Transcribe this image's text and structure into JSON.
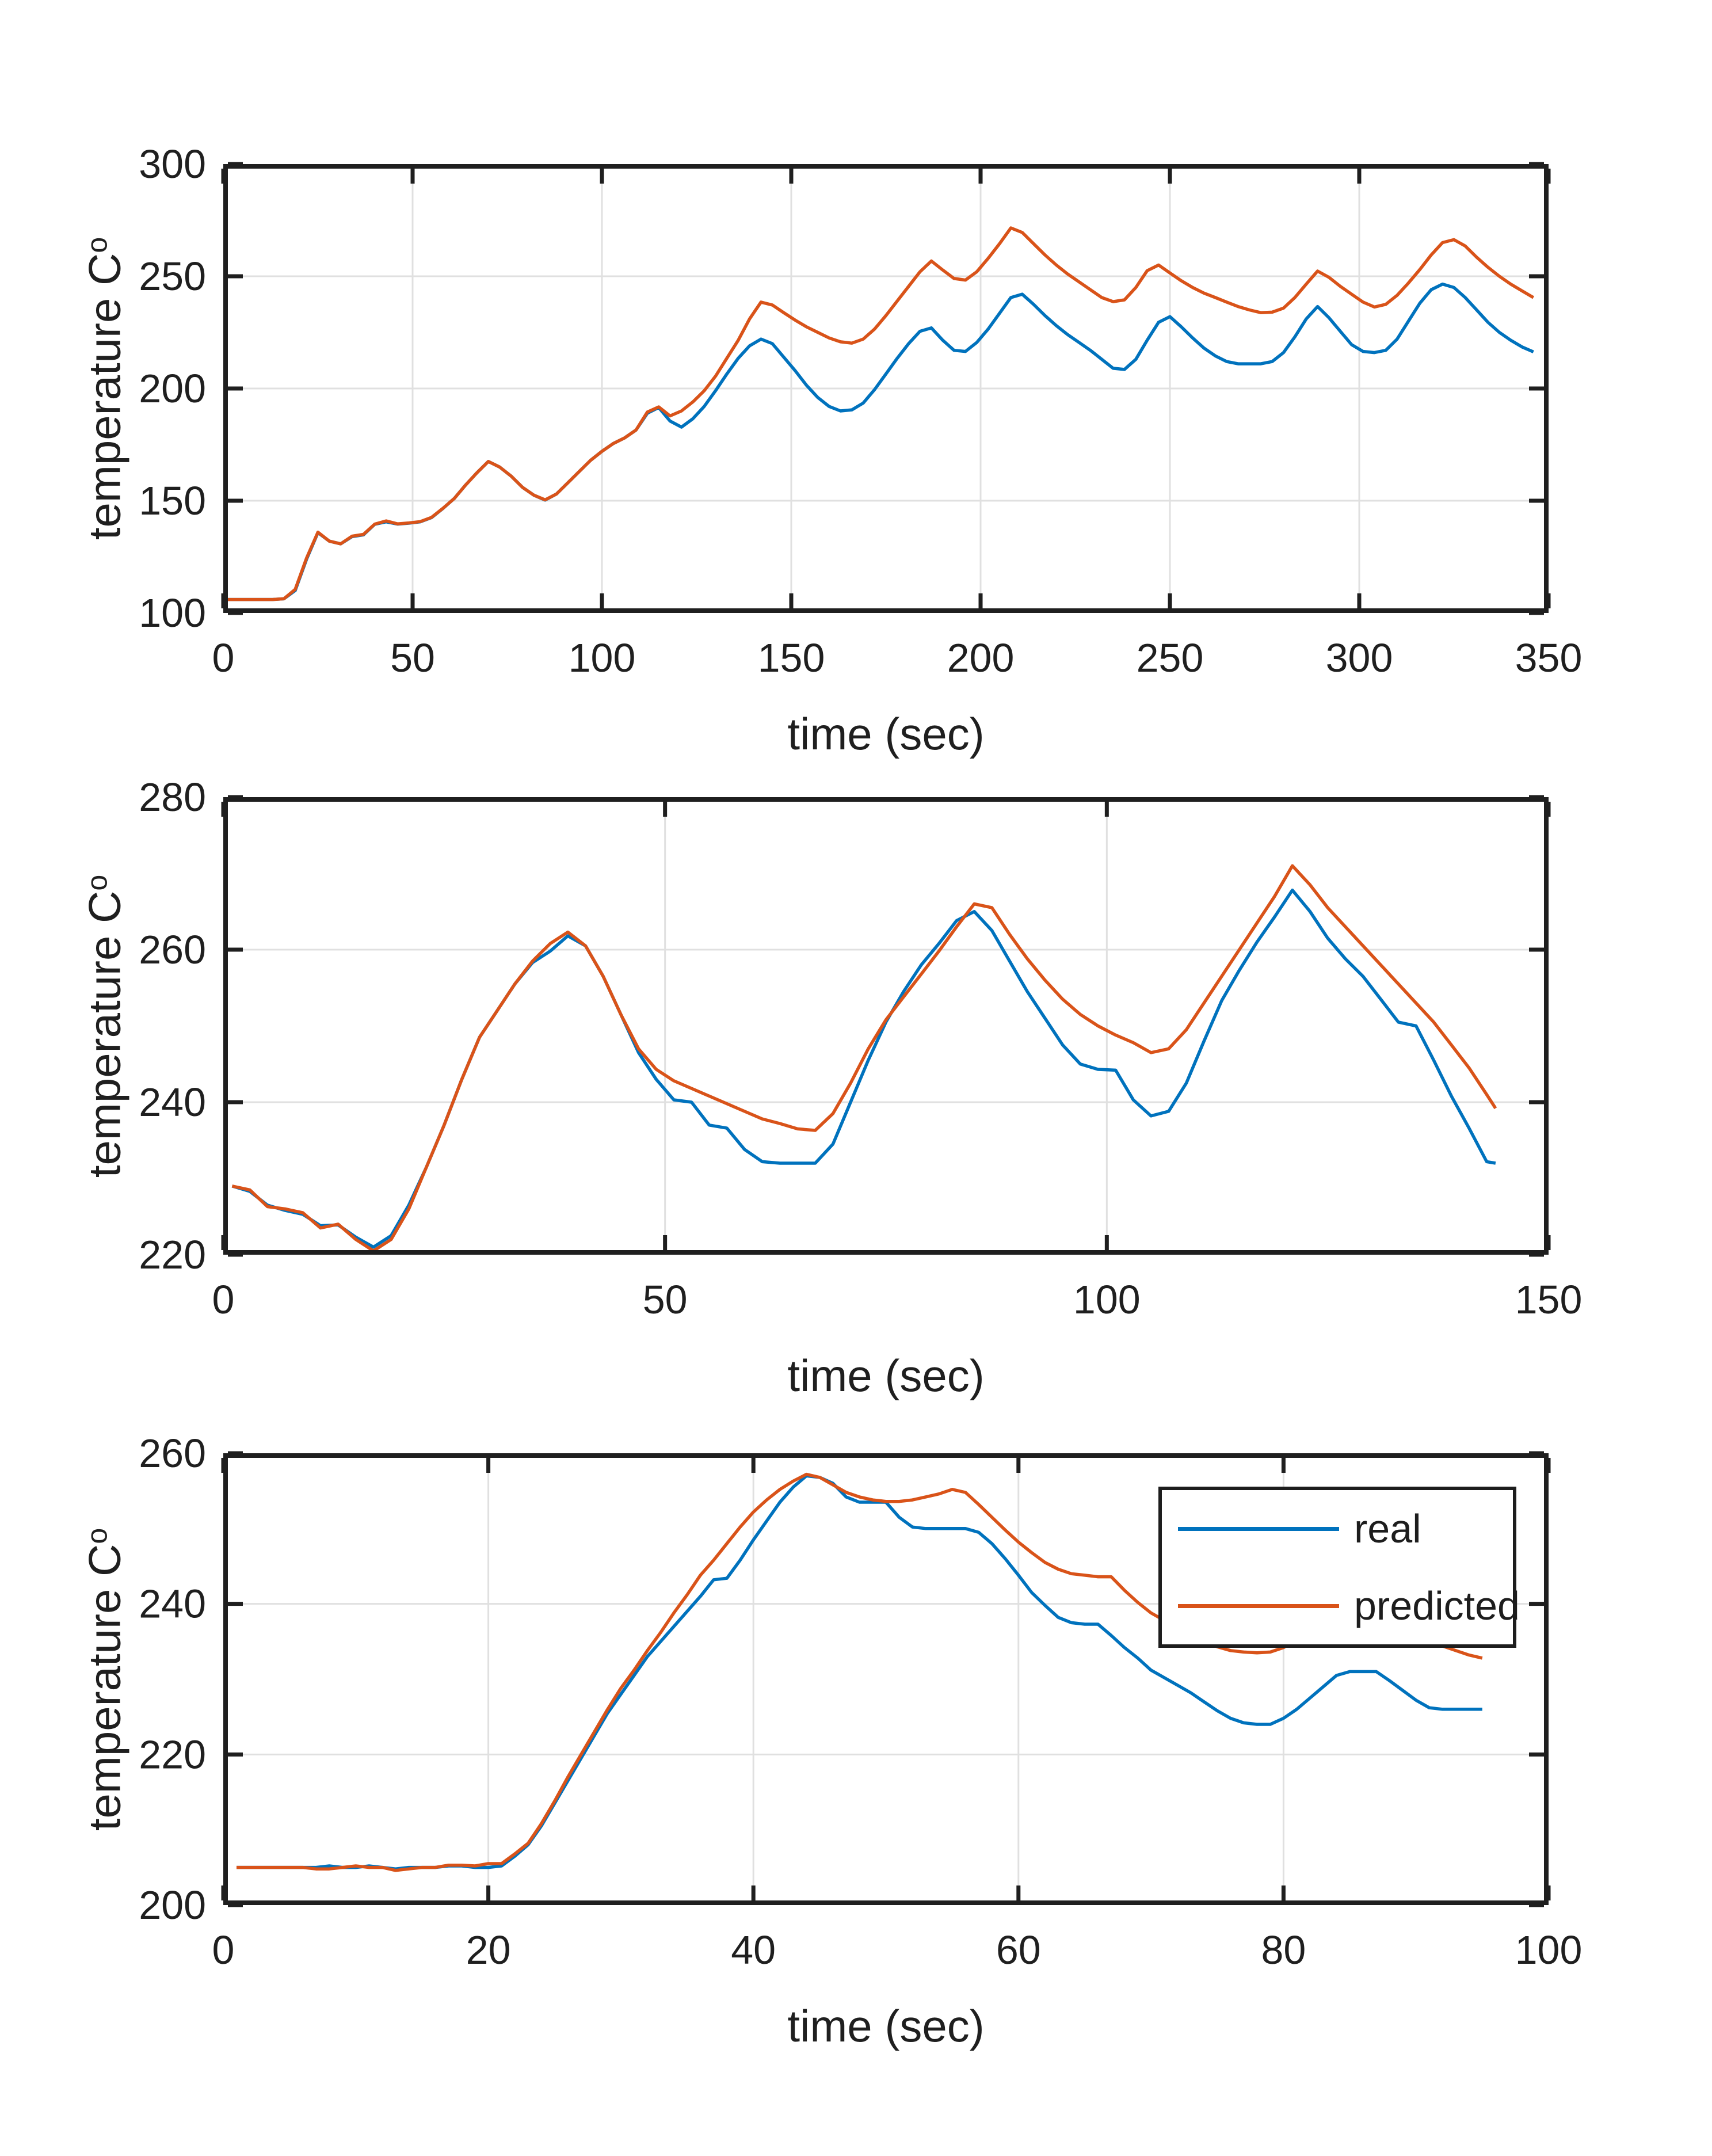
{
  "figure": {
    "background": "#ffffff",
    "axis_color": "#1f1f1f",
    "grid_color": "#e0e0e0",
    "tick_label_color": "#1f1f1f"
  },
  "series_colors": {
    "real": "#0072BD",
    "predicted": "#D95319"
  },
  "legend": {
    "location": "northeast",
    "entries": [
      {
        "label": "real",
        "series": "real"
      },
      {
        "label": "predicted",
        "series": "predicted"
      }
    ]
  },
  "chart_data": [
    {
      "type": "line",
      "xlabel": "time (sec)",
      "ylabel": "temperature C",
      "ylabel_sup": "o",
      "xlim": [
        0,
        350
      ],
      "ylim": [
        100,
        300
      ],
      "xticks": [
        0,
        50,
        100,
        150,
        200,
        250,
        300,
        350
      ],
      "yticks": [
        100,
        150,
        200,
        250,
        300
      ],
      "grid": true,
      "x": [
        1,
        4,
        7,
        10,
        13,
        16,
        19,
        22,
        25,
        28,
        31,
        34,
        37,
        40,
        43,
        46,
        49,
        52,
        55,
        58,
        61,
        64,
        67,
        70,
        73,
        76,
        79,
        82,
        85,
        88,
        91,
        94,
        97,
        100,
        103,
        106,
        109,
        112,
        115,
        118,
        121,
        124,
        127,
        130,
        133,
        136,
        139,
        142,
        145,
        148,
        151,
        154,
        157,
        160,
        163,
        166,
        169,
        172,
        175,
        178,
        181,
        184,
        187,
        190,
        193,
        196,
        199,
        202,
        205,
        208,
        211,
        214,
        217,
        220,
        223,
        226,
        229,
        232,
        235,
        238,
        241,
        244,
        247,
        250,
        253,
        256,
        259,
        262,
        265,
        268,
        271,
        274,
        277,
        280,
        283,
        286,
        289,
        292,
        295,
        298,
        301,
        304,
        307,
        310,
        313,
        316,
        319,
        322,
        325,
        328,
        331,
        334,
        337,
        340,
        343,
        346
      ],
      "series": [
        {
          "name": "real",
          "values": [
            106,
            106,
            106,
            106,
            106,
            106.3,
            110,
            124,
            135.8,
            132,
            130.8,
            134,
            134.8,
            139.5,
            140.6,
            139.6,
            140,
            140.6,
            142.5,
            146.5,
            151,
            157,
            162.5,
            167.5,
            165,
            161,
            156,
            152.5,
            150.3,
            153,
            158,
            163,
            168,
            172,
            175.5,
            178,
            181.5,
            189,
            191.5,
            185.5,
            182.8,
            186.5,
            192,
            199,
            206.5,
            213.5,
            219,
            222,
            220,
            214,
            208,
            201.5,
            196,
            192,
            190,
            190.5,
            193.5,
            199.5,
            206.5,
            213.5,
            220,
            225.5,
            227,
            221.5,
            217,
            216.5,
            220.5,
            226.5,
            233.5,
            240.5,
            242,
            237.5,
            232.5,
            228,
            224,
            220.5,
            217,
            213,
            209,
            208.5,
            213,
            221.5,
            229.5,
            232,
            227.5,
            222.5,
            218,
            214.5,
            212,
            211,
            211,
            211,
            212,
            216,
            223,
            231,
            236.5,
            231.5,
            225.5,
            219.5,
            216.5,
            216,
            217,
            222,
            230,
            238,
            244,
            246.5,
            245,
            240.5,
            235,
            229.5,
            225,
            221.5,
            218.5,
            216.3
          ]
        },
        {
          "name": "predicted",
          "values": [
            106,
            106,
            106,
            106,
            106,
            106.3,
            110.5,
            124.5,
            136,
            132,
            130.8,
            134.2,
            135,
            139.6,
            141,
            139.7,
            140.1,
            140.7,
            142.6,
            146.6,
            151,
            157,
            162.5,
            167.5,
            165,
            161,
            156,
            152.5,
            150.4,
            153,
            158,
            163,
            168,
            172,
            175.5,
            178,
            181.5,
            189.5,
            191.8,
            187.8,
            190,
            194,
            199,
            205.5,
            213.5,
            221.5,
            231,
            238.5,
            237.2,
            233.8,
            230.5,
            227.5,
            225,
            222.5,
            220.8,
            220.2,
            222,
            226.5,
            232.5,
            239,
            245.5,
            252,
            256.8,
            252.8,
            249,
            248.3,
            252,
            258,
            264.5,
            271.5,
            269.5,
            264.5,
            259.5,
            255,
            251,
            247.5,
            244,
            240.5,
            238.7,
            239.5,
            245,
            252.5,
            255,
            251.5,
            248,
            245,
            242.5,
            240.5,
            238.5,
            236.5,
            235,
            233.8,
            234,
            235.8,
            240.5,
            246.5,
            252.3,
            249.5,
            245.5,
            242,
            238.5,
            236.3,
            237.5,
            241.5,
            247,
            253,
            259.5,
            265,
            266.3,
            263.5,
            258.5,
            254,
            250,
            246.5,
            243.5,
            240.5
          ]
        }
      ]
    },
    {
      "type": "line",
      "xlabel": "time (sec)",
      "ylabel": "temperature C",
      "ylabel_sup": "o",
      "xlim": [
        0,
        150
      ],
      "ylim": [
        220,
        280
      ],
      "xticks": [
        0,
        50,
        100,
        150
      ],
      "yticks": [
        220,
        240,
        260,
        280
      ],
      "grid": true,
      "x": [
        1,
        3,
        5,
        7,
        9,
        11,
        13,
        15,
        17,
        19,
        21,
        23,
        25,
        27,
        29,
        31,
        33,
        35,
        37,
        39,
        41,
        43,
        45,
        47,
        49,
        51,
        53,
        55,
        57,
        59,
        61,
        63,
        65,
        67,
        69,
        71,
        73,
        75,
        77,
        79,
        81,
        83,
        85,
        87,
        89,
        91,
        93,
        95,
        97,
        99,
        101,
        103,
        105,
        107,
        109,
        111,
        113,
        115,
        117,
        119,
        121,
        123,
        125,
        127,
        129,
        131,
        133,
        135,
        137,
        139,
        141,
        143,
        144
      ],
      "series": [
        {
          "name": "real",
          "values": [
            229,
            228.3,
            226.5,
            225.8,
            225.3,
            223.8,
            223.9,
            222.3,
            221,
            222.5,
            226.5,
            231.5,
            237,
            243,
            248.5,
            252,
            255.5,
            258.3,
            259.8,
            261.8,
            260.5,
            256.5,
            251.5,
            246.5,
            243,
            240.3,
            240,
            237,
            236.6,
            233.8,
            232.2,
            232,
            232,
            232,
            234.5,
            240,
            245.5,
            250.5,
            254.5,
            258,
            260.8,
            263.8,
            265,
            262.5,
            258.5,
            254.5,
            251,
            247.5,
            245,
            244.3,
            244.2,
            240.3,
            238.2,
            238.8,
            242.5,
            248,
            253.3,
            257.3,
            261,
            264.3,
            267.8,
            265,
            261.5,
            258.8,
            256.5,
            253.5,
            250.5,
            250,
            245.5,
            240.8,
            236.6,
            232.2,
            232
          ]
        },
        {
          "name": "predicted",
          "values": [
            229,
            228.5,
            226.3,
            226,
            225.5,
            223.5,
            224,
            222,
            220.5,
            222,
            226,
            231.5,
            237,
            243,
            248.5,
            252,
            255.5,
            258.5,
            260.8,
            262.3,
            260.5,
            256.5,
            251.5,
            247,
            244.3,
            242.8,
            241.8,
            240.8,
            239.8,
            238.8,
            237.8,
            237.2,
            236.5,
            236.3,
            238.5,
            242.5,
            247,
            250.8,
            253.8,
            256.8,
            259.8,
            263,
            266,
            265.5,
            262,
            258.8,
            256,
            253.5,
            251.5,
            250,
            248.8,
            247.8,
            246.5,
            247,
            249.5,
            253,
            256.5,
            260,
            263.5,
            267,
            271,
            268.5,
            265.5,
            263,
            260.5,
            258,
            255.5,
            253,
            250.5,
            247.5,
            244.5,
            241,
            239.2
          ]
        }
      ]
    },
    {
      "type": "line",
      "xlabel": "time (sec)",
      "ylabel": "temperature C",
      "ylabel_sup": "o",
      "xlim": [
        0,
        100
      ],
      "ylim": [
        200,
        260
      ],
      "xticks": [
        0,
        20,
        40,
        60,
        80,
        100
      ],
      "yticks": [
        200,
        220,
        240,
        260
      ],
      "grid": true,
      "legend": [
        "real",
        "predicted"
      ],
      "x": [
        1,
        2,
        3,
        4,
        5,
        6,
        7,
        8,
        9,
        10,
        11,
        12,
        13,
        14,
        15,
        16,
        17,
        18,
        19,
        20,
        21,
        22,
        23,
        24,
        25,
        26,
        27,
        28,
        29,
        30,
        31,
        32,
        33,
        34,
        35,
        36,
        37,
        38,
        39,
        40,
        41,
        42,
        43,
        44,
        45,
        46,
        47,
        48,
        49,
        50,
        51,
        52,
        53,
        54,
        55,
        56,
        57,
        58,
        59,
        60,
        61,
        62,
        63,
        64,
        65,
        66,
        67,
        68,
        69,
        70,
        71,
        72,
        73,
        74,
        75,
        76,
        77,
        78,
        79,
        80,
        81,
        82,
        83,
        84,
        85,
        86,
        87,
        88,
        89,
        90,
        91,
        92,
        93,
        94,
        95
      ],
      "series": [
        {
          "name": "real",
          "values": [
            205,
            205,
            205,
            205,
            205,
            205,
            205,
            205.2,
            205,
            205,
            205.2,
            205,
            204.8,
            205,
            205,
            205,
            205.2,
            205.2,
            205,
            205,
            205.2,
            206.5,
            208,
            210.5,
            213.5,
            216.5,
            219.5,
            222.5,
            225.5,
            228,
            230.5,
            233,
            235,
            237,
            239,
            241,
            243.2,
            243.4,
            245.8,
            248.5,
            251,
            253.5,
            255.5,
            257,
            256.8,
            256,
            254.2,
            253.5,
            253.5,
            253.5,
            251.5,
            250.2,
            250,
            250,
            250,
            250,
            249.5,
            248,
            246,
            243.8,
            241.5,
            239.8,
            238.2,
            237.5,
            237.3,
            237.3,
            235.8,
            234.2,
            232.8,
            231.2,
            230.2,
            229.2,
            228.2,
            227,
            225.8,
            224.8,
            224.2,
            224,
            224,
            224.8,
            226,
            227.5,
            229,
            230.5,
            231,
            231,
            231,
            229.8,
            228.5,
            227.2,
            226.2,
            226,
            226,
            226,
            226
          ]
        },
        {
          "name": "predicted",
          "values": [
            205,
            205,
            205,
            205,
            205,
            205,
            204.8,
            204.8,
            205,
            205.2,
            205,
            205,
            204.6,
            204.8,
            205,
            205,
            205.3,
            205.3,
            205.2,
            205.5,
            205.5,
            206.8,
            208.2,
            210.8,
            213.8,
            217,
            220,
            223,
            226,
            228.8,
            231.2,
            233.8,
            236.2,
            238.8,
            241.2,
            243.8,
            245.8,
            248,
            250.2,
            252.2,
            253.8,
            255.2,
            256.3,
            257.2,
            256.8,
            255.8,
            254.8,
            254.2,
            253.8,
            253.6,
            253.6,
            253.8,
            254.2,
            254.6,
            255.2,
            254.8,
            253.2,
            251.5,
            249.8,
            248.2,
            246.8,
            245.5,
            244.6,
            244,
            243.8,
            243.6,
            243.6,
            241.8,
            240.2,
            238.8,
            237.8,
            236.8,
            235.8,
            235,
            234.3,
            233.8,
            233.6,
            233.5,
            233.6,
            234.2,
            235.2,
            236.2,
            237.2,
            237.8,
            238.2,
            238,
            237.2,
            236.4,
            235.8,
            235.2,
            234.8,
            234.4,
            233.8,
            233.2,
            232.8
          ]
        }
      ]
    }
  ]
}
